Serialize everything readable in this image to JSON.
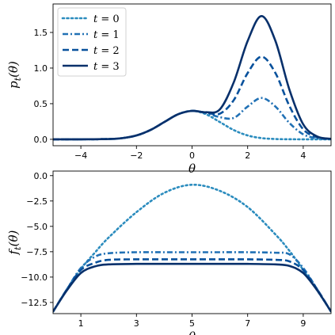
{
  "chart_data": [
    {
      "type": "line",
      "xlabel": "θ",
      "ylabel": "pt(θ)",
      "xlim": [
        -5,
        5
      ],
      "ylim": [
        -0.09,
        1.9
      ],
      "xticks": [
        -4,
        -2,
        0,
        2,
        4
      ],
      "yticks": [
        0.0,
        0.5,
        1.0,
        1.5
      ],
      "xtick_labels": [
        "−4",
        "−2",
        "0",
        "2",
        "4"
      ],
      "ytick_labels": [
        "0.0",
        "0.5",
        "1.0",
        "1.5"
      ],
      "grid": false,
      "legend_placement": "top-left",
      "series": [
        {
          "name": "t = 0",
          "style": "dotted",
          "color": "#2b8cbe",
          "x": [
            -5,
            -4,
            -3,
            -2.5,
            -2,
            -1.5,
            -1,
            -0.5,
            0,
            0.5,
            1,
            1.5,
            2,
            2.5,
            3,
            3.5,
            4,
            4.5,
            5
          ],
          "y": [
            0,
            0,
            0.004,
            0.017,
            0.054,
            0.13,
            0.242,
            0.352,
            0.399,
            0.352,
            0.242,
            0.13,
            0.054,
            0.017,
            0.004,
            0.001,
            0,
            0,
            0
          ]
        },
        {
          "name": "t = 1",
          "style": "dashdot",
          "color": "#2171b5",
          "x": [
            -5,
            -4,
            -3,
            -2.5,
            -2,
            -1.5,
            -1,
            -0.5,
            0,
            0.5,
            1,
            1.5,
            2,
            2.5,
            3,
            3.5,
            4,
            4.5,
            5
          ],
          "y": [
            0,
            0,
            0.004,
            0.017,
            0.054,
            0.13,
            0.242,
            0.352,
            0.399,
            0.37,
            0.31,
            0.3,
            0.46,
            0.58,
            0.46,
            0.23,
            0.07,
            0.015,
            0.002
          ]
        },
        {
          "name": "t = 2",
          "style": "dashed",
          "color": "#08519c",
          "x": [
            -5,
            -4,
            -3,
            -2.5,
            -2,
            -1.5,
            -1,
            -0.5,
            0,
            0.5,
            1,
            1.5,
            2,
            2.5,
            3,
            3.5,
            4,
            4.5,
            5
          ],
          "y": [
            0,
            0,
            0.004,
            0.017,
            0.054,
            0.13,
            0.242,
            0.352,
            0.399,
            0.375,
            0.36,
            0.55,
            0.93,
            1.16,
            0.93,
            0.47,
            0.14,
            0.03,
            0.004
          ]
        },
        {
          "name": "t = 3",
          "style": "solid",
          "color": "#08306b",
          "x": [
            -5,
            -4,
            -3,
            -2.5,
            -2,
            -1.5,
            -1,
            -0.5,
            0,
            0.5,
            1,
            1.5,
            2,
            2.5,
            3,
            3.5,
            4,
            4.5,
            5
          ],
          "y": [
            0,
            0,
            0.004,
            0.017,
            0.054,
            0.13,
            0.242,
            0.352,
            0.399,
            0.38,
            0.42,
            0.8,
            1.38,
            1.73,
            1.38,
            0.7,
            0.21,
            0.04,
            0.006
          ]
        }
      ]
    },
    {
      "type": "line",
      "xlabel": "θ",
      "ylabel": "ft(θ)",
      "xlim": [
        0,
        10
      ],
      "ylim": [
        -13.6,
        0.45
      ],
      "xticks": [
        1,
        3,
        5,
        7,
        9
      ],
      "yticks": [
        0.0,
        -2.5,
        -5.0,
        -7.5,
        -10.0,
        -12.5
      ],
      "xtick_labels": [
        "1",
        "3",
        "5",
        "7",
        "9"
      ],
      "ytick_labels": [
        "0.0",
        "−2.5",
        "−5.0",
        "−7.5",
        "−10.0",
        "−12.5"
      ],
      "grid": false,
      "series": [
        {
          "name": "t = 0",
          "style": "dotted",
          "color": "#2b8cbe",
          "x": [
            0,
            0.5,
            1,
            1.5,
            2,
            3,
            4,
            5,
            6,
            7,
            8,
            8.5,
            9,
            9.5,
            10
          ],
          "y": [
            -13.4,
            -11.2,
            -9.2,
            -7.6,
            -6.1,
            -3.6,
            -1.7,
            -0.9,
            -1.5,
            -3.1,
            -5.8,
            -7.4,
            -9.3,
            -11.3,
            -13.4
          ]
        },
        {
          "name": "t = 1",
          "style": "dashdot",
          "color": "#2171b5",
          "x": [
            0,
            0.5,
            1,
            1.5,
            2,
            3,
            4,
            5,
            6,
            7,
            8,
            8.5,
            9,
            9.5,
            10
          ],
          "y": [
            -13.4,
            -11.2,
            -9.1,
            -8.0,
            -7.65,
            -7.55,
            -7.55,
            -7.55,
            -7.55,
            -7.55,
            -7.6,
            -7.75,
            -9.1,
            -11.2,
            -13.4
          ]
        },
        {
          "name": "t = 2",
          "style": "dashed",
          "color": "#08519c",
          "x": [
            0,
            0.5,
            1,
            1.5,
            2,
            3,
            4,
            5,
            6,
            7,
            8,
            8.5,
            9,
            9.5,
            10
          ],
          "y": [
            -13.4,
            -11.2,
            -9.3,
            -8.6,
            -8.3,
            -8.25,
            -8.25,
            -8.25,
            -8.25,
            -8.25,
            -8.3,
            -8.45,
            -9.3,
            -11.2,
            -13.4
          ]
        },
        {
          "name": "t = 3",
          "style": "solid",
          "color": "#08306b",
          "x": [
            0,
            0.5,
            1,
            1.5,
            2,
            3,
            4,
            5,
            6,
            7,
            8,
            8.5,
            9,
            9.5,
            10
          ],
          "y": [
            -13.4,
            -11.3,
            -9.6,
            -8.95,
            -8.75,
            -8.7,
            -8.7,
            -8.7,
            -8.7,
            -8.7,
            -8.75,
            -8.9,
            -9.6,
            -11.3,
            -13.4
          ]
        }
      ]
    }
  ]
}
